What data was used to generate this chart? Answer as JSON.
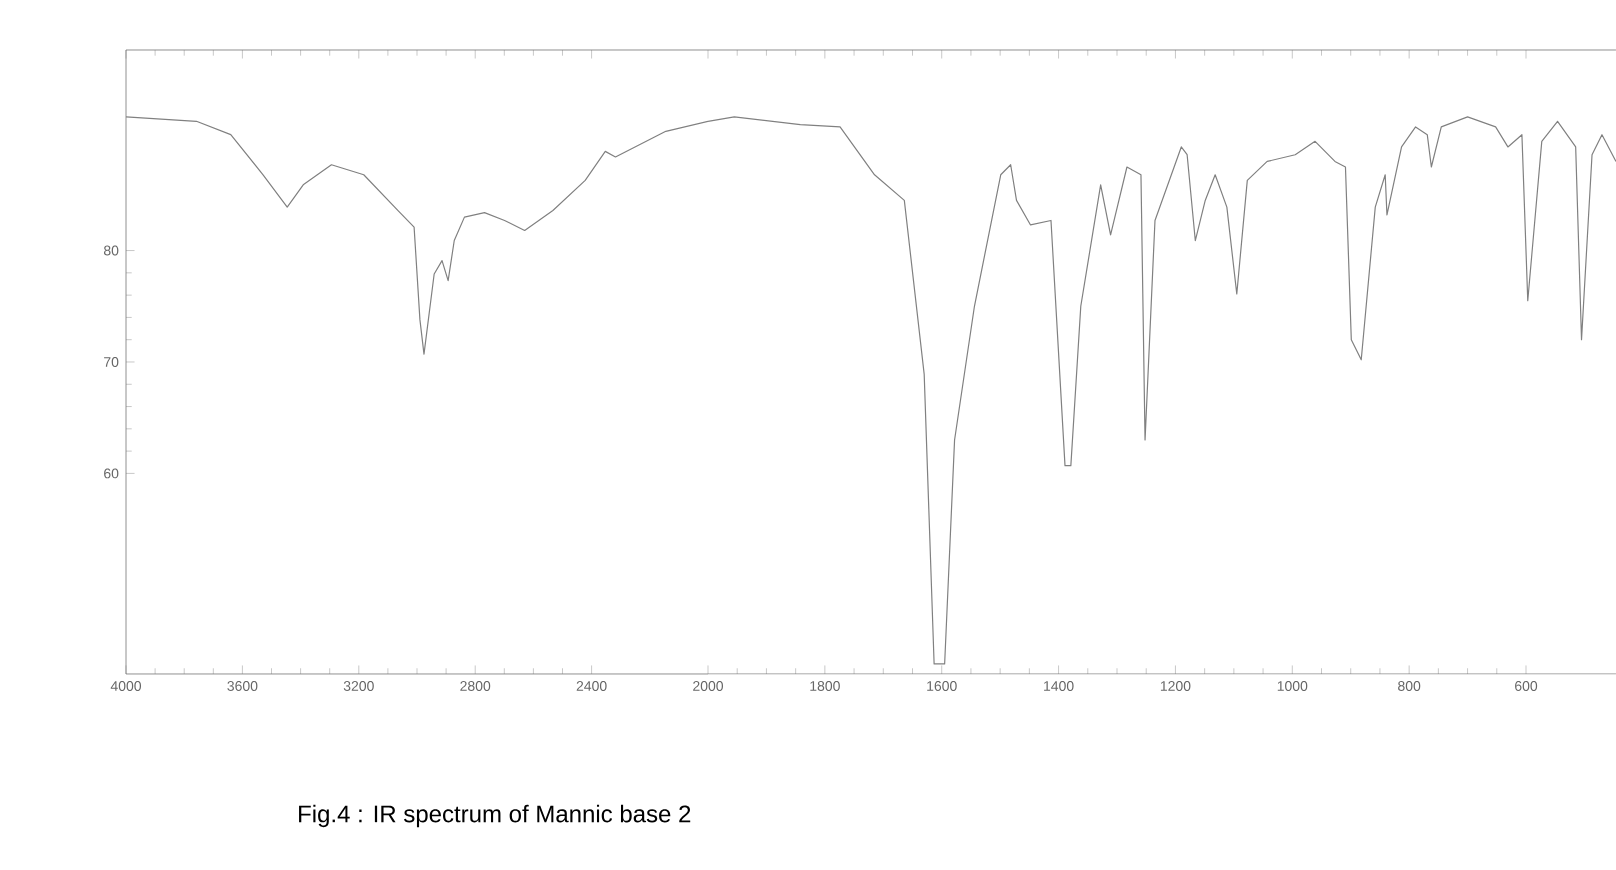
{
  "chart_data": [
    {
      "type": "line",
      "color": "#808080",
      "x": [
        4000,
        3758,
        3640,
        3529,
        3446,
        3391,
        3294,
        3183,
        3066,
        3010,
        2990,
        2976,
        2941,
        2914,
        2893,
        2872,
        2837,
        2768,
        2699,
        2630,
        2533,
        2422,
        2353,
        2318,
        2145,
        2000
      ],
      "values": [
        92.0,
        91.6,
        90.4,
        86.8,
        83.9,
        85.9,
        87.7,
        86.8,
        83.6,
        82.1,
        73.8,
        70.7,
        77.9,
        79.1,
        77.3,
        80.9,
        83.0,
        83.4,
        82.7,
        81.8,
        83.6,
        86.3,
        88.9,
        88.4,
        90.7,
        91.6
      ],
      "xlim": [
        4000,
        2000
      ],
      "xticks": [
        4000,
        3600,
        3200,
        2800,
        2400
      ],
      "ylim": [
        42,
        98
      ],
      "yticks": [
        60,
        70,
        80
      ],
      "grid": false,
      "marker": "none",
      "line_style": "solid",
      "annotations": [
        "Fig.4 : IR spectrum of Mannic base 2"
      ]
    },
    {
      "type": "line",
      "color": "#808080",
      "x": [
        2000,
        1955,
        1842,
        1774,
        1715,
        1664,
        1630,
        1613,
        1595,
        1578,
        1544,
        1499,
        1482,
        1472,
        1448,
        1413,
        1389,
        1379,
        1362,
        1328,
        1311,
        1283,
        1259,
        1252,
        1235,
        1190,
        1180,
        1166,
        1149,
        1132,
        1112,
        1095,
        1077,
        1043,
        995,
        961,
        927,
        909,
        899,
        882,
        858,
        841,
        838,
        813,
        789,
        769,
        762,
        745,
        700,
        652,
        631,
        607,
        597,
        573,
        546,
        515,
        505,
        487,
        470,
        446
      ],
      "values": [
        91.6,
        92.0,
        91.3,
        91.1,
        86.8,
        84.5,
        68.9,
        42.9,
        42.9,
        63.0,
        75.0,
        86.8,
        87.7,
        84.5,
        82.3,
        82.7,
        60.7,
        60.7,
        75.0,
        85.9,
        81.4,
        87.5,
        86.8,
        63.0,
        82.7,
        89.3,
        88.6,
        80.9,
        84.5,
        86.8,
        83.9,
        76.1,
        86.3,
        88.0,
        88.6,
        89.8,
        88.0,
        87.5,
        72.0,
        70.2,
        83.9,
        86.8,
        83.2,
        89.3,
        91.1,
        90.4,
        87.5,
        91.1,
        92.0,
        91.1,
        89.3,
        90.4,
        75.5,
        89.8,
        91.6,
        89.3,
        72.0,
        88.6,
        90.4,
        88.0
      ],
      "xlim": [
        2000,
        446
      ],
      "xticks": [
        2000,
        1800,
        1600,
        1400,
        1200,
        1000,
        800,
        600
      ],
      "ylim": [
        42,
        98
      ],
      "tick_labels": "x",
      "grid": false,
      "marker": "none",
      "line_style": "solid"
    }
  ]
}
